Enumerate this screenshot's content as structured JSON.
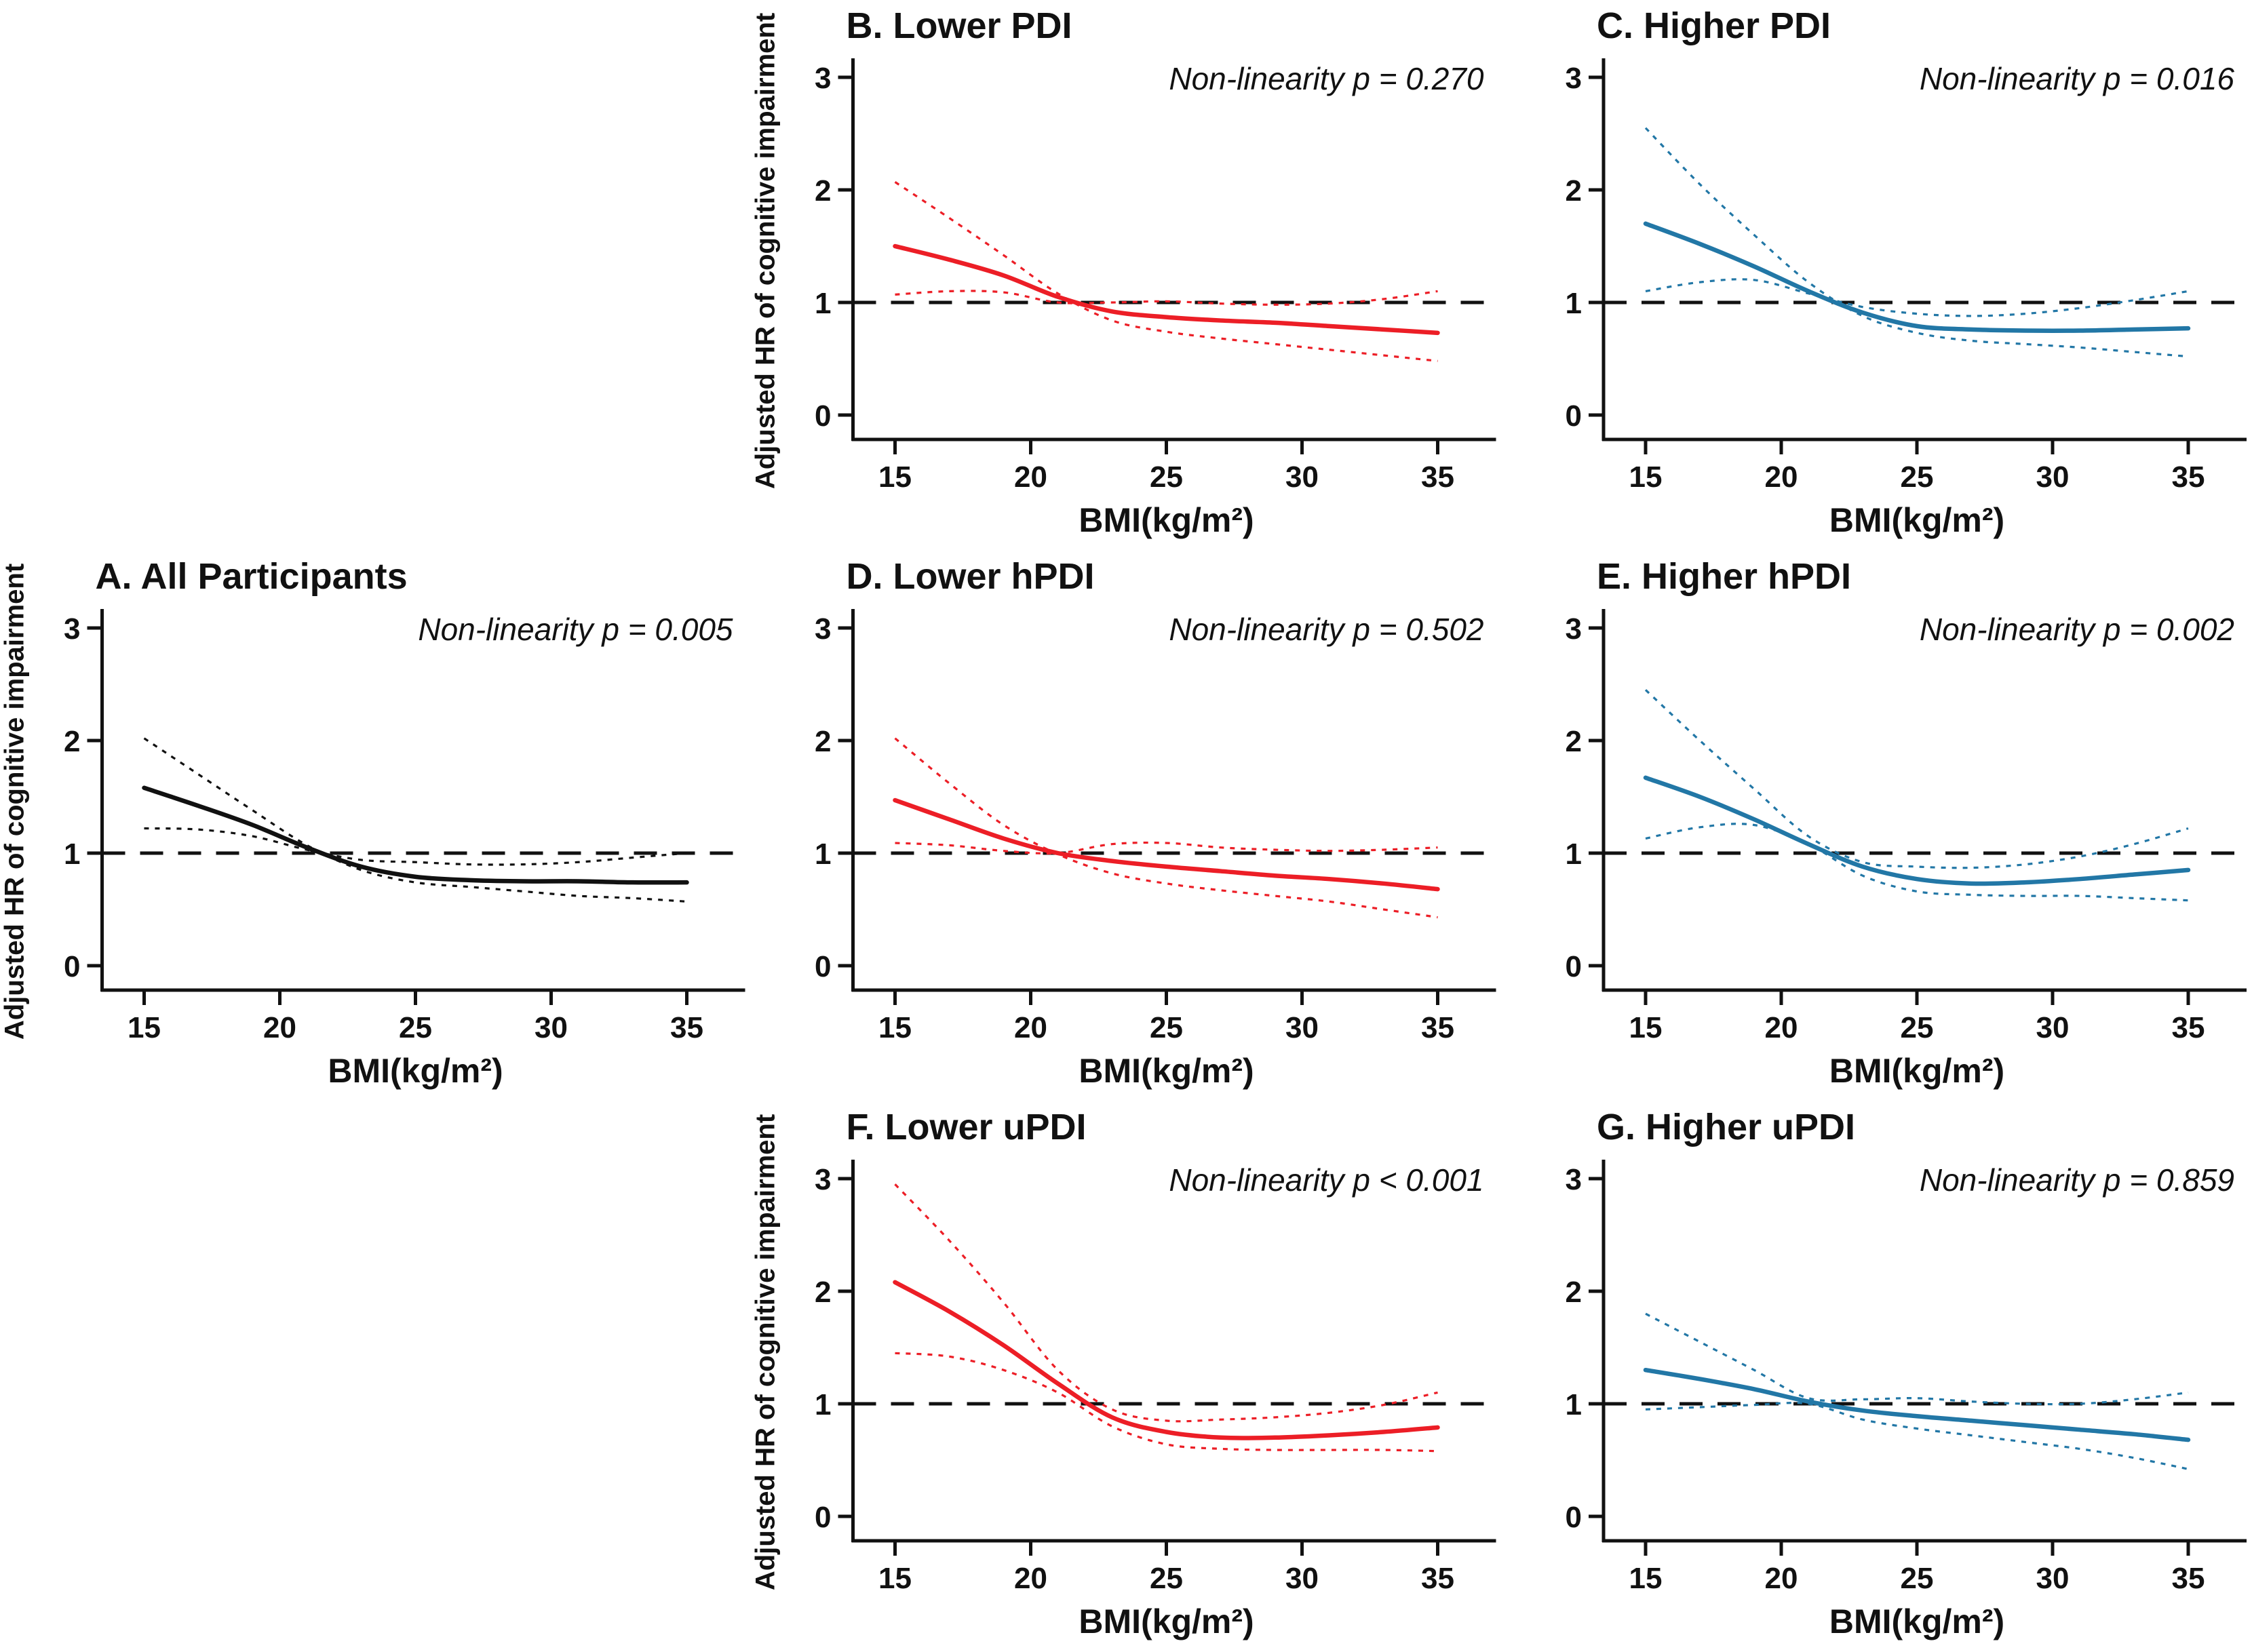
{
  "figure": {
    "background": "#FFFFFF",
    "y_axis_label": "Adjusted HR of cognitive impairment",
    "x_axis_label": "BMI(kg/m²)",
    "x_ticks": [
      "15",
      "20",
      "25",
      "30",
      "35"
    ],
    "y_ticks": [
      "0",
      "1",
      "2",
      "3"
    ],
    "colors": {
      "red": "#EC1E26",
      "blue": "#2277A6",
      "black": "#111111",
      "reference_line": "#111111"
    }
  },
  "chart_data": [
    {
      "id": "A",
      "type": "line",
      "title": "A. All Participants",
      "annotation": "Non-linearity p = 0.005",
      "color_key": "black",
      "row": 2,
      "col": 1,
      "show_y_label": true,
      "xlabel": "BMI(kg/m²)",
      "ylabel": "Adjusted HR of cognitive impairment",
      "xlim": [
        15,
        35
      ],
      "ylim": [
        0,
        3
      ],
      "reference_hr": 1,
      "grid": "off",
      "legend": "none",
      "x": [
        15,
        17,
        19,
        21,
        23,
        25,
        27,
        29,
        31,
        33,
        35
      ],
      "hr": [
        1.58,
        1.42,
        1.25,
        1.05,
        0.88,
        0.79,
        0.76,
        0.75,
        0.75,
        0.74,
        0.74
      ],
      "ci_a": [
        2.02,
        1.7,
        1.38,
        1.07,
        0.85,
        0.74,
        0.7,
        0.66,
        0.62,
        0.6,
        0.57
      ],
      "ci_b": [
        1.22,
        1.21,
        1.15,
        1.03,
        0.94,
        0.92,
        0.9,
        0.9,
        0.92,
        0.96,
        1.0
      ]
    },
    {
      "id": "B",
      "type": "line",
      "title": "B. Lower PDI",
      "annotation": "Non-linearity p = 0.270",
      "color_key": "red",
      "row": 1,
      "col": 2,
      "show_y_label": true,
      "xlabel": "BMI(kg/m²)",
      "ylabel": "Adjusted HR of cognitive impairment",
      "xlim": [
        15,
        35
      ],
      "ylim": [
        0,
        3
      ],
      "reference_hr": 1,
      "grid": "off",
      "legend": "none",
      "x": [
        15,
        17,
        19,
        21,
        23,
        25,
        27,
        29,
        31,
        33,
        35
      ],
      "hr": [
        1.5,
        1.38,
        1.24,
        1.05,
        0.92,
        0.87,
        0.84,
        0.82,
        0.79,
        0.76,
        0.73
      ],
      "ci_a": [
        2.07,
        1.75,
        1.42,
        1.08,
        0.84,
        0.74,
        0.68,
        0.63,
        0.58,
        0.53,
        0.48
      ],
      "ci_b": [
        1.07,
        1.1,
        1.09,
        1.0,
        1.0,
        1.01,
        0.99,
        0.98,
        0.99,
        1.03,
        1.1
      ]
    },
    {
      "id": "C",
      "type": "line",
      "title": "C. Higher PDI",
      "annotation": "Non-linearity p = 0.016",
      "color_key": "blue",
      "row": 1,
      "col": 3,
      "show_y_label": false,
      "xlabel": "BMI(kg/m²)",
      "ylabel": "Adjusted HR of cognitive impairment",
      "xlim": [
        15,
        35
      ],
      "ylim": [
        0,
        3
      ],
      "reference_hr": 1,
      "grid": "off",
      "legend": "none",
      "x": [
        15,
        17,
        19,
        21,
        23,
        25,
        27,
        29,
        31,
        33,
        35
      ],
      "hr": [
        1.7,
        1.52,
        1.32,
        1.1,
        0.91,
        0.79,
        0.76,
        0.75,
        0.75,
        0.76,
        0.77
      ],
      "ci_a": [
        2.55,
        2.05,
        1.6,
        1.18,
        0.88,
        0.73,
        0.66,
        0.63,
        0.6,
        0.56,
        0.52
      ],
      "ci_b": [
        1.1,
        1.18,
        1.2,
        1.08,
        0.96,
        0.9,
        0.88,
        0.9,
        0.95,
        1.02,
        1.1
      ]
    },
    {
      "id": "D",
      "type": "line",
      "title": "D. Lower hPDI",
      "annotation": "Non-linearity p = 0.502",
      "color_key": "red",
      "row": 2,
      "col": 2,
      "show_y_label": false,
      "xlabel": "BMI(kg/m²)",
      "ylabel": "Adjusted HR of cognitive impairment",
      "xlim": [
        15,
        35
      ],
      "ylim": [
        0,
        3
      ],
      "reference_hr": 1,
      "grid": "off",
      "legend": "none",
      "x": [
        15,
        17,
        19,
        21,
        23,
        25,
        27,
        29,
        31,
        33,
        35
      ],
      "hr": [
        1.47,
        1.3,
        1.13,
        1.0,
        0.93,
        0.88,
        0.84,
        0.8,
        0.77,
        0.73,
        0.68
      ],
      "ci_a": [
        2.02,
        1.62,
        1.25,
        0.99,
        0.82,
        0.73,
        0.67,
        0.62,
        0.57,
        0.5,
        0.43
      ],
      "ci_b": [
        1.09,
        1.07,
        1.02,
        1.0,
        1.08,
        1.09,
        1.05,
        1.03,
        1.02,
        1.03,
        1.05
      ]
    },
    {
      "id": "E",
      "type": "line",
      "title": "E. Higher hPDI",
      "annotation": "Non-linearity p = 0.002",
      "color_key": "blue",
      "row": 2,
      "col": 3,
      "show_y_label": false,
      "xlabel": "BMI(kg/m²)",
      "ylabel": "Adjusted HR of cognitive impairment",
      "xlim": [
        15,
        35
      ],
      "ylim": [
        0,
        3
      ],
      "reference_hr": 1,
      "grid": "off",
      "legend": "none",
      "x": [
        15,
        17,
        19,
        21,
        23,
        25,
        27,
        29,
        31,
        33,
        35
      ],
      "hr": [
        1.67,
        1.5,
        1.3,
        1.08,
        0.88,
        0.77,
        0.73,
        0.74,
        0.77,
        0.81,
        0.85
      ],
      "ci_a": [
        2.45,
        2.0,
        1.57,
        1.15,
        0.92,
        0.88,
        0.87,
        0.9,
        0.97,
        1.08,
        1.22
      ],
      "ci_b": [
        1.13,
        1.23,
        1.25,
        1.08,
        0.8,
        0.66,
        0.63,
        0.62,
        0.62,
        0.6,
        0.58
      ]
    },
    {
      "id": "F",
      "type": "line",
      "title": "F. Lower uPDI",
      "annotation": "Non-linearity p < 0.001",
      "color_key": "red",
      "row": 3,
      "col": 2,
      "show_y_label": true,
      "xlabel": "BMI(kg/m²)",
      "ylabel": "Adjusted HR of cognitive impairment",
      "xlim": [
        15,
        35
      ],
      "ylim": [
        0,
        3
      ],
      "reference_hr": 1,
      "grid": "off",
      "legend": "none",
      "x": [
        15,
        17,
        19,
        21,
        23,
        25,
        27,
        29,
        31,
        33,
        35
      ],
      "hr": [
        2.08,
        1.82,
        1.52,
        1.18,
        0.88,
        0.75,
        0.7,
        0.7,
        0.72,
        0.75,
        0.79
      ],
      "ci_a": [
        2.95,
        2.45,
        1.9,
        1.3,
        0.95,
        0.85,
        0.86,
        0.88,
        0.92,
        0.99,
        1.1
      ],
      "ci_b": [
        1.45,
        1.42,
        1.3,
        1.1,
        0.8,
        0.64,
        0.6,
        0.59,
        0.59,
        0.59,
        0.58
      ]
    },
    {
      "id": "G",
      "type": "line",
      "title": "G. Higher uPDI",
      "annotation": "Non-linearity p = 0.859",
      "color_key": "blue",
      "row": 3,
      "col": 3,
      "show_y_label": false,
      "xlabel": "BMI(kg/m²)",
      "ylabel": "Adjusted HR of cognitive impairment",
      "xlim": [
        15,
        35
      ],
      "ylim": [
        0,
        3
      ],
      "reference_hr": 1,
      "grid": "off",
      "legend": "none",
      "x": [
        15,
        17,
        19,
        21,
        23,
        25,
        27,
        29,
        31,
        33,
        35
      ],
      "hr": [
        1.3,
        1.22,
        1.13,
        1.02,
        0.94,
        0.89,
        0.85,
        0.81,
        0.77,
        0.73,
        0.68
      ],
      "ci_a": [
        1.8,
        1.55,
        1.3,
        1.05,
        1.04,
        1.05,
        1.02,
        1.0,
        1.0,
        1.04,
        1.1
      ],
      "ci_b": [
        0.95,
        0.97,
        0.99,
        1.0,
        0.86,
        0.78,
        0.72,
        0.66,
        0.6,
        0.52,
        0.42
      ]
    }
  ]
}
